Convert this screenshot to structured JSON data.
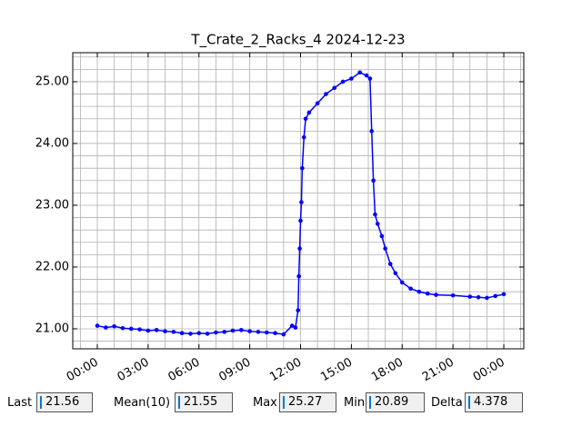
{
  "chart_data": {
    "type": "line",
    "title": "T_Crate_2_Racks_4 2024-12-23",
    "color": "#0000ff",
    "grid": true,
    "x": [
      0,
      0.5,
      1,
      1.5,
      2,
      2.5,
      3,
      3.5,
      4,
      4.5,
      5,
      5.5,
      6,
      6.5,
      7,
      7.5,
      8,
      8.5,
      9,
      9.5,
      10,
      10.5,
      11,
      11.5,
      11.7,
      11.85,
      11.9,
      11.95,
      12.0,
      12.05,
      12.1,
      12.2,
      12.3,
      12.5,
      13,
      13.5,
      14,
      14.5,
      15,
      15.5,
      15.9,
      16.1,
      16.2,
      16.3,
      16.4,
      16.55,
      16.8,
      17,
      17.3,
      17.6,
      18,
      18.5,
      19,
      19.5,
      20,
      21,
      22,
      22.5,
      23,
      23.5,
      24
    ],
    "values": [
      21.05,
      21.02,
      21.04,
      21.01,
      21.0,
      20.99,
      20.97,
      20.98,
      20.96,
      20.95,
      20.93,
      20.92,
      20.93,
      20.92,
      20.94,
      20.95,
      20.97,
      20.98,
      20.96,
      20.95,
      20.94,
      20.93,
      20.91,
      21.05,
      21.02,
      21.3,
      21.85,
      22.3,
      22.75,
      23.05,
      23.6,
      24.1,
      24.4,
      24.5,
      24.65,
      24.8,
      24.9,
      25.0,
      25.05,
      25.15,
      25.1,
      25.05,
      24.2,
      23.4,
      22.85,
      22.7,
      22.5,
      22.3,
      22.05,
      21.9,
      21.75,
      21.65,
      21.6,
      21.57,
      21.55,
      21.54,
      21.52,
      21.51,
      21.5,
      21.53,
      21.56
    ],
    "xlim": [
      -1.45,
      25.18
    ],
    "xticks": [
      {
        "value": 0,
        "label": "00:00"
      },
      {
        "value": 3,
        "label": "03:00"
      },
      {
        "value": 6,
        "label": "06:00"
      },
      {
        "value": 9,
        "label": "09:00"
      },
      {
        "value": 12,
        "label": "12:00"
      },
      {
        "value": 15,
        "label": "15:00"
      },
      {
        "value": 18,
        "label": "18:00"
      },
      {
        "value": 21,
        "label": "21:00"
      },
      {
        "value": 24,
        "label": "00:00"
      }
    ],
    "minor_xticks": [
      -1,
      1,
      2,
      4,
      5,
      7,
      8,
      10,
      11,
      13,
      14,
      16,
      17,
      19,
      20,
      22,
      23,
      25
    ],
    "ylim": [
      20.676,
      25.47
    ],
    "yticks": [
      {
        "value": 21,
        "label": "21.00"
      },
      {
        "value": 22,
        "label": "22.00"
      },
      {
        "value": 23,
        "label": "23.00"
      },
      {
        "value": 24,
        "label": "24.00"
      },
      {
        "value": 25,
        "label": "25.00"
      }
    ],
    "minor_yticks": [
      20.8,
      21.2,
      21.4,
      21.6,
      21.8,
      22.2,
      22.4,
      22.6,
      22.8,
      23.2,
      23.4,
      23.6,
      23.8,
      24.2,
      24.4,
      24.6,
      24.8,
      25.2,
      25.4
    ]
  },
  "stats": [
    {
      "label": "Last",
      "value": 21.56
    },
    {
      "label": "Mean(10)",
      "value": 21.55
    },
    {
      "label": "Max",
      "value": 25.27
    },
    {
      "label": "Min",
      "value": 20.89
    },
    {
      "label": "Delta",
      "value": 4.378
    }
  ]
}
